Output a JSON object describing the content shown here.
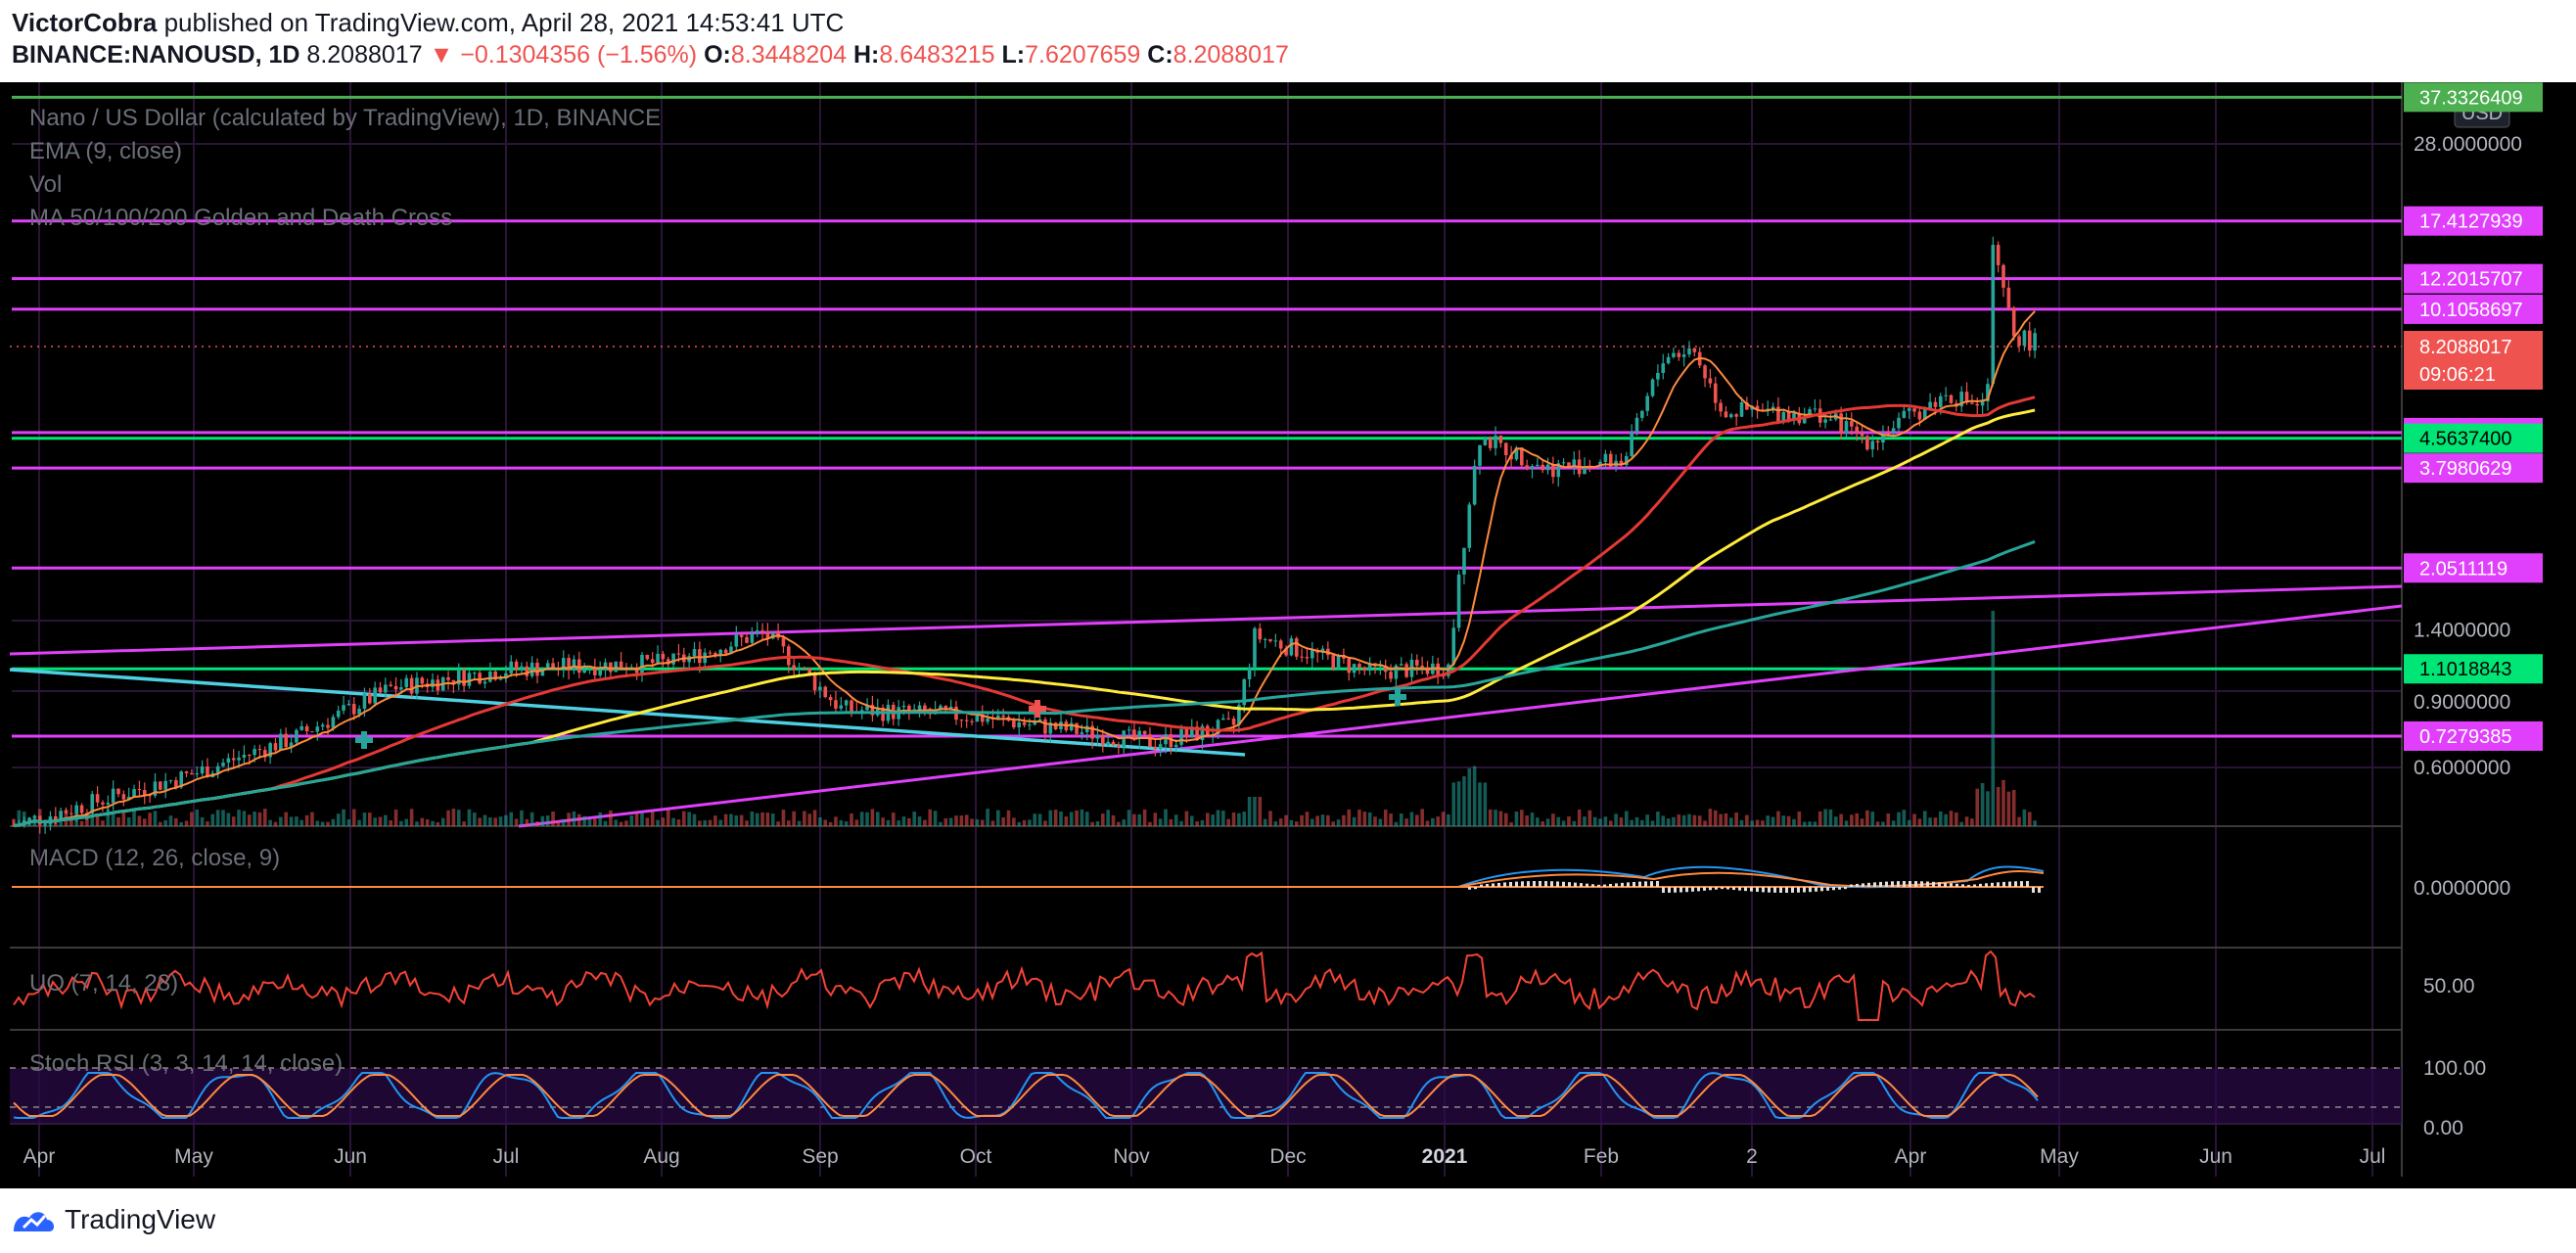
{
  "header": {
    "author": "VictorCobra",
    "published_text": " published on TradingView.com, April 28, 2021 14:53:41 UTC",
    "symbol": "BINANCE:NANOUSD, 1D",
    "last": "8.2088017",
    "change": "▼ −0.1304356 (−1.56%)",
    "o_label": "O:",
    "o_value": "8.3448204",
    "h_label": "H:",
    "h_value": "8.6483215",
    "l_label": "L:",
    "l_value": "7.6207659",
    "c_label": "C:",
    "c_value": "8.2088017"
  },
  "legend": {
    "title": "Nano / US Dollar (calculated by TradingView), 1D, BINANCE",
    "ema": "EMA (9, close)",
    "vol": "Vol",
    "ma": "MA 50/100/200 Golden and Death Cross",
    "macd": "MACD (12, 26, close, 9)",
    "uo": "UO (7, 14, 28)",
    "stoch": "Stoch RSI (3, 3, 14, 14, close)"
  },
  "footer": {
    "brand": "TradingView"
  },
  "colors": {
    "bg": "#000000",
    "grid": "#2a1536",
    "up": "#26a69a",
    "down": "#ef5350",
    "magenta": "#e040fb",
    "green": "#00e676",
    "ema": "#ff8a3d",
    "ma50": "#e53935",
    "ma100": "#ffeb3b",
    "ma200": "#26a69a",
    "cyan": "#4dd0e1"
  },
  "chart_data": {
    "type": "candlestick",
    "symbol": "BINANCE:NANOUSD",
    "timeframe": "1D",
    "y_scale": "log",
    "currency": "USD",
    "x_tick_labels": [
      "Apr",
      "May",
      "Jun",
      "Jul",
      "Aug",
      "Sep",
      "Oct",
      "Nov",
      "Dec",
      "2021",
      "Feb",
      "2",
      "Apr",
      "May",
      "Jun",
      "Jul"
    ],
    "y_tick_labels": [
      "28.0000000",
      "1.4000000",
      "0.9000000",
      "0.6000000"
    ],
    "price_line_labels": [
      {
        "label": "37.3326409",
        "color": "#4caf50"
      },
      {
        "label": "17.4127939",
        "color": "#e040fb"
      },
      {
        "label": "12.2015707",
        "color": "#e040fb"
      },
      {
        "label": "10.1058697",
        "color": "#e040fb"
      },
      {
        "label": "4.7264461",
        "color": "#e040fb"
      },
      {
        "label": "4.5637400",
        "color": "#00e676"
      },
      {
        "label": "3.7980629",
        "color": "#e040fb"
      },
      {
        "label": "2.0511119",
        "color": "#e040fb"
      },
      {
        "label": "1.1018843",
        "color": "#00e676"
      },
      {
        "label": "0.7279385",
        "color": "#e040fb"
      }
    ],
    "last_price": {
      "label": "8.2088017",
      "countdown": "09:06:21"
    },
    "macd_tick": "0.0000000",
    "uo_tick": "50.00",
    "stoch_ticks": [
      "100.00",
      "0.00"
    ],
    "close_path": [
      [
        "Apr",
        0.45
      ],
      [
        "May",
        0.58
      ],
      [
        "Jun",
        0.95
      ],
      [
        "Jul",
        1.05
      ],
      [
        "Aug",
        1.12
      ],
      [
        "Aug",
        1.35
      ],
      [
        "Sep",
        0.85
      ],
      [
        "Oct",
        0.8
      ],
      [
        "Nov",
        0.72
      ],
      [
        "Nov",
        1.35
      ],
      [
        "Dec",
        1.05
      ],
      [
        "2021",
        1.1
      ],
      [
        "2021",
        4.6
      ],
      [
        "Feb",
        3.8
      ],
      [
        "Feb",
        7.8
      ],
      [
        "2",
        5.2
      ],
      [
        "Apr",
        4.4
      ],
      [
        "Apr",
        14.5
      ],
      [
        "May",
        8.21
      ]
    ],
    "series": [
      {
        "name": "EMA (9, close)"
      },
      {
        "name": "MA 50"
      },
      {
        "name": "MA 100"
      },
      {
        "name": "MA 200"
      }
    ]
  }
}
